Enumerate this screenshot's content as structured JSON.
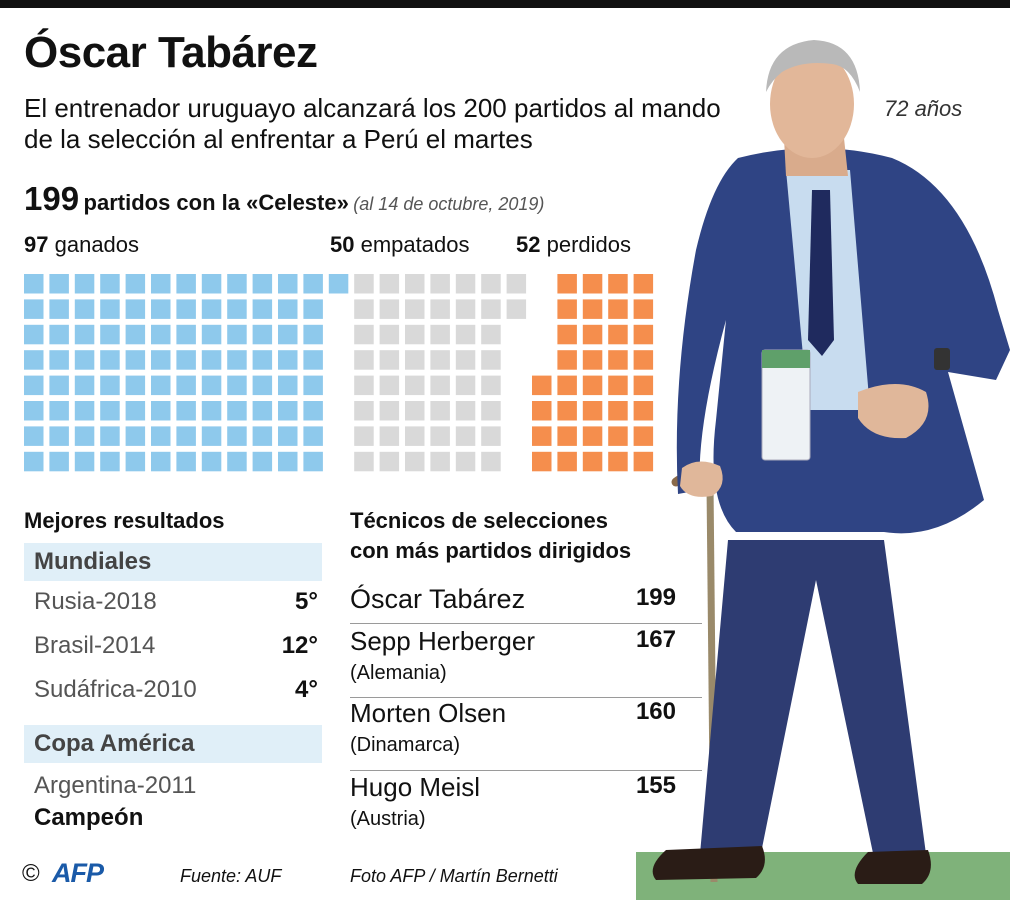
{
  "header": {
    "title": "Óscar Tabárez",
    "subtitle": "El entrenador uruguayo alcanzará los 200 partidos al mando de la selección al enfrentar a Perú el martes",
    "age": "72 años"
  },
  "summary": {
    "total": "199",
    "total_label": "partidos con la «Celeste»",
    "date_note": "(al 14 de octubre, 2019)",
    "won_value": "97",
    "won_label": "ganados",
    "draw_value": "50",
    "draw_label": "empatados",
    "lost_value": "52",
    "lost_label": "perdidos"
  },
  "waffle": {
    "won": 97,
    "draw": 50,
    "lost": 52,
    "colors": {
      "won": "#8ec9ec",
      "draw": "#d9d9d9",
      "lost": "#f58e4d"
    }
  },
  "best_results": {
    "title": "Mejores resultados",
    "mundiales_label": "Mundiales",
    "mundiales": [
      {
        "label": "Rusia-2018",
        "value": "5°"
      },
      {
        "label": "Brasil-2014",
        "value": "12°"
      },
      {
        "label": "Sudáfrica-2010",
        "value": "4°"
      }
    ],
    "copa_label": "Copa América",
    "copa_event": "Argentina-2011",
    "copa_result": "Campeón"
  },
  "coaches": {
    "title_line1": "Técnicos de selecciones",
    "title_line2": "con más partidos dirigidos",
    "rows": [
      {
        "name": "Óscar Tabárez",
        "country": "",
        "value": "199"
      },
      {
        "name": "Sepp Herberger",
        "country": "(Alemania)",
        "value": "167"
      },
      {
        "name": "Morten Olsen",
        "country": "(Dinamarca)",
        "value": "160"
      },
      {
        "name": "Hugo Meisl",
        "country": "(Austria)",
        "value": "155"
      }
    ]
  },
  "credits": {
    "copyright": "©",
    "logo": "AFP",
    "source": "Fuente: AUF",
    "photo": "Foto AFP / Martín Bernetti"
  }
}
